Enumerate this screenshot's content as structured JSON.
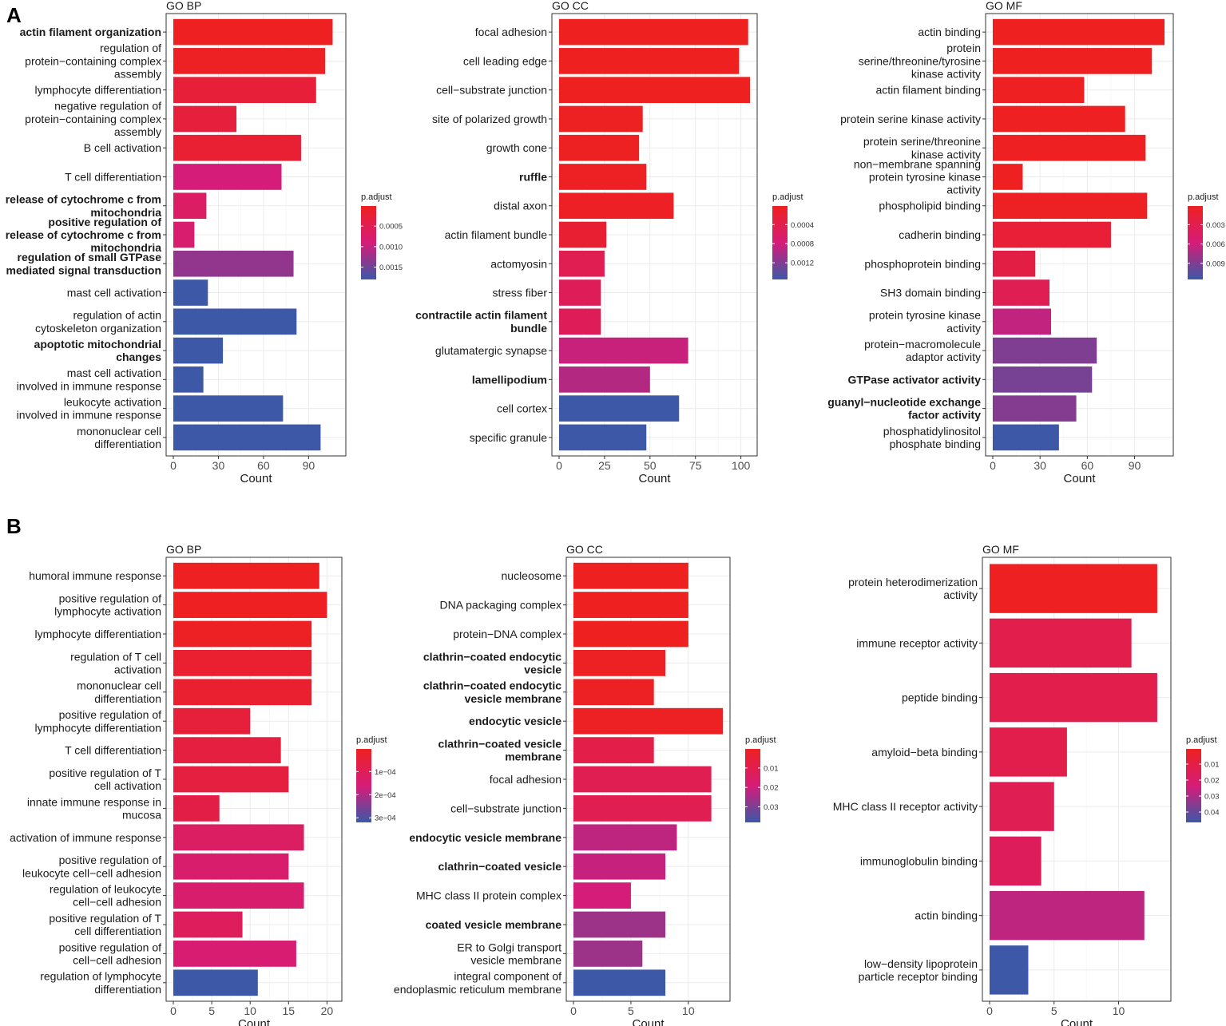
{
  "figure_labels": [
    "A",
    "B"
  ],
  "colors": {
    "low_p": "#ee2020",
    "mid_p": "#d51c78",
    "high_p": "#3c58a6"
  },
  "chart_data": [
    {
      "panel": "A",
      "type": "bar",
      "orientation": "horizontal",
      "title": "GO BP",
      "xlabel": "Count",
      "xlim": [
        0,
        110
      ],
      "xticks": [
        0,
        30,
        60,
        90
      ],
      "legend_title": "p.adjust",
      "legend_range": [
        1e-05,
        0.0018
      ],
      "legend_ticks": [
        {
          "value": 0.0005,
          "label": "0.0005"
        },
        {
          "value": 0.001,
          "label": "0.0010"
        },
        {
          "value": 0.0015,
          "label": "0.0015"
        }
      ],
      "bars": [
        {
          "label": [
            "actin filament organization"
          ],
          "bold": true,
          "value": 106,
          "p": 2e-05
        },
        {
          "label": [
            "regulation of",
            "protein−containing complex",
            "assembly"
          ],
          "bold": false,
          "value": 101,
          "p": 5e-05
        },
        {
          "label": [
            "lymphocyte differentiation"
          ],
          "bold": false,
          "value": 95,
          "p": 0.00025
        },
        {
          "label": [
            "negative regulation of",
            "protein−containing complex",
            "assembly"
          ],
          "bold": false,
          "value": 42,
          "p": 0.0003
        },
        {
          "label": [
            "B cell activation"
          ],
          "bold": false,
          "value": 85,
          "p": 0.0002
        },
        {
          "label": [
            "T cell differentiation"
          ],
          "bold": false,
          "value": 72,
          "p": 0.0009
        },
        {
          "label": [
            "release of cytochrome c from",
            "mitochondria"
          ],
          "bold": true,
          "value": 22,
          "p": 0.0007
        },
        {
          "label": [
            "positive regulation of",
            "release of cytochrome c from",
            "mitochondria"
          ],
          "bold": true,
          "value": 14,
          "p": 0.0008
        },
        {
          "label": [
            "regulation of small GTPase",
            "mediated signal transduction"
          ],
          "bold": true,
          "value": 80,
          "p": 0.0013
        },
        {
          "label": [
            "mast cell activation"
          ],
          "bold": false,
          "value": 23,
          "p": 0.0018
        },
        {
          "label": [
            "regulation of actin",
            "cytoskeleton organization"
          ],
          "bold": false,
          "value": 82,
          "p": 0.0018
        },
        {
          "label": [
            "apoptotic mitochondrial",
            "changes"
          ],
          "bold": true,
          "value": 33,
          "p": 0.0018
        },
        {
          "label": [
            "mast cell activation",
            "involved in immune response"
          ],
          "bold": false,
          "value": 20,
          "p": 0.0018
        },
        {
          "label": [
            "leukocyte activation",
            "involved in immune response"
          ],
          "bold": false,
          "value": 73,
          "p": 0.0018
        },
        {
          "label": [
            "mononuclear cell",
            "differentiation"
          ],
          "bold": false,
          "value": 98,
          "p": 0.0018
        }
      ]
    },
    {
      "panel": "A",
      "type": "bar",
      "orientation": "horizontal",
      "title": "GO CC",
      "xlabel": "Count",
      "xlim": [
        0,
        105
      ],
      "xticks": [
        0,
        25,
        50,
        75,
        100
      ],
      "legend_title": "p.adjust",
      "legend_range": [
        1e-05,
        0.00155
      ],
      "legend_ticks": [
        {
          "value": 0.0004,
          "label": "0.0004"
        },
        {
          "value": 0.0008,
          "label": "0.0008"
        },
        {
          "value": 0.0012,
          "label": "0.0012"
        }
      ],
      "bars": [
        {
          "label": [
            "focal adhesion"
          ],
          "bold": false,
          "value": 104,
          "p": 1e-05
        },
        {
          "label": [
            "cell leading edge"
          ],
          "bold": false,
          "value": 99,
          "p": 1e-05
        },
        {
          "label": [
            "cell−substrate junction"
          ],
          "bold": false,
          "value": 105,
          "p": 1e-05
        },
        {
          "label": [
            "site of polarized growth"
          ],
          "bold": false,
          "value": 46,
          "p": 3e-05
        },
        {
          "label": [
            "growth cone"
          ],
          "bold": false,
          "value": 44,
          "p": 3e-05
        },
        {
          "label": [
            "ruffle"
          ],
          "bold": true,
          "value": 48,
          "p": 4e-05
        },
        {
          "label": [
            "distal axon"
          ],
          "bold": false,
          "value": 63,
          "p": 5e-05
        },
        {
          "label": [
            "actin filament bundle"
          ],
          "bold": false,
          "value": 26,
          "p": 0.00018
        },
        {
          "label": [
            "actomyosin"
          ],
          "bold": false,
          "value": 25,
          "p": 0.00045
        },
        {
          "label": [
            "stress fiber"
          ],
          "bold": false,
          "value": 23,
          "p": 0.0005
        },
        {
          "label": [
            "contractile actin filament",
            "bundle"
          ],
          "bold": true,
          "value": 23,
          "p": 0.0005
        },
        {
          "label": [
            "glutamatergic synapse"
          ],
          "bold": false,
          "value": 71,
          "p": 0.00085
        },
        {
          "label": [
            "lamellipodium"
          ],
          "bold": true,
          "value": 50,
          "p": 0.00095
        },
        {
          "label": [
            "cell cortex"
          ],
          "bold": false,
          "value": 66,
          "p": 0.00155
        },
        {
          "label": [
            "specific granule"
          ],
          "bold": false,
          "value": 48,
          "p": 0.00155
        }
      ]
    },
    {
      "panel": "A",
      "type": "bar",
      "orientation": "horizontal",
      "title": "GO MF",
      "xlabel": "Count",
      "xlim": [
        0,
        110
      ],
      "xticks": [
        0,
        30,
        60,
        90
      ],
      "legend_title": "p.adjust",
      "legend_range": [
        0.0001,
        0.0115
      ],
      "legend_ticks": [
        {
          "value": 0.003,
          "label": "0.003"
        },
        {
          "value": 0.006,
          "label": "0.006"
        },
        {
          "value": 0.009,
          "label": "0.009"
        }
      ],
      "bars": [
        {
          "label": [
            "actin binding"
          ],
          "bold": false,
          "value": 109,
          "p": 0.0001
        },
        {
          "label": [
            "protein",
            "serine/threonine/tyrosine",
            "kinase activity"
          ],
          "bold": false,
          "value": 101,
          "p": 0.0001
        },
        {
          "label": [
            "actin filament binding"
          ],
          "bold": false,
          "value": 58,
          "p": 0.0002
        },
        {
          "label": [
            "protein serine kinase activity"
          ],
          "bold": false,
          "value": 84,
          "p": 0.0002
        },
        {
          "label": [
            "protein serine/threonine",
            "kinase activity"
          ],
          "bold": false,
          "value": 97,
          "p": 0.0002
        },
        {
          "label": [
            "non−membrane spanning",
            "protein tyrosine kinase",
            "activity"
          ],
          "bold": false,
          "value": 19,
          "p": 0.0002
        },
        {
          "label": [
            "phospholipid binding"
          ],
          "bold": false,
          "value": 98,
          "p": 0.0003
        },
        {
          "label": [
            "cadherin binding"
          ],
          "bold": false,
          "value": 75,
          "p": 0.0015
        },
        {
          "label": [
            "phosphoprotein binding"
          ],
          "bold": false,
          "value": 27,
          "p": 0.0025
        },
        {
          "label": [
            "SH3 domain binding"
          ],
          "bold": false,
          "value": 36,
          "p": 0.0035
        },
        {
          "label": [
            "protein tyrosine kinase",
            "activity"
          ],
          "bold": false,
          "value": 37,
          "p": 0.0065
        },
        {
          "label": [
            "protein−macromolecule",
            "adaptor activity"
          ],
          "bold": false,
          "value": 66,
          "p": 0.009
        },
        {
          "label": [
            "GTPase activator activity"
          ],
          "bold": true,
          "value": 63,
          "p": 0.0093
        },
        {
          "label": [
            "guanyl−nucleotide exchange",
            "factor activity"
          ],
          "bold": true,
          "value": 53,
          "p": 0.0088
        },
        {
          "label": [
            "phosphatidylinositol",
            "phosphate binding"
          ],
          "bold": false,
          "value": 42,
          "p": 0.0115
        }
      ]
    },
    {
      "panel": "B",
      "type": "bar",
      "orientation": "horizontal",
      "title": "GO BP",
      "xlabel": "Count",
      "xlim": [
        0,
        21
      ],
      "xticks": [
        0,
        5,
        10,
        15,
        20
      ],
      "legend_title": "p.adjust",
      "legend_range": [
        2e-06,
        0.00032
      ],
      "legend_ticks": [
        {
          "value": 0.0001,
          "label": "1e−04"
        },
        {
          "value": 0.0002,
          "label": "2e−04"
        },
        {
          "value": 0.0003,
          "label": "3e−04"
        }
      ],
      "bars": [
        {
          "label": [
            "humoral immune response"
          ],
          "bold": false,
          "value": 19,
          "p": 5e-06
        },
        {
          "label": [
            "positive regulation of",
            "lymphocyte activation"
          ],
          "bold": false,
          "value": 20,
          "p": 5e-06
        },
        {
          "label": [
            "lymphocyte differentiation"
          ],
          "bold": false,
          "value": 18,
          "p": 1e-05
        },
        {
          "label": [
            "regulation of T cell",
            "activation"
          ],
          "bold": false,
          "value": 18,
          "p": 3e-05
        },
        {
          "label": [
            "mononuclear cell",
            "differentiation"
          ],
          "bold": false,
          "value": 18,
          "p": 3e-05
        },
        {
          "label": [
            "positive regulation of",
            "lymphocyte differentiation"
          ],
          "bold": false,
          "value": 10,
          "p": 5e-05
        },
        {
          "label": [
            "T cell differentiation"
          ],
          "bold": false,
          "value": 14,
          "p": 6e-05
        },
        {
          "label": [
            "positive regulation of T",
            "cell activation"
          ],
          "bold": false,
          "value": 15,
          "p": 6e-05
        },
        {
          "label": [
            "innate immune response in",
            "mucosa"
          ],
          "bold": false,
          "value": 6,
          "p": 7e-05
        },
        {
          "label": [
            "activation of immune response"
          ],
          "bold": false,
          "value": 17,
          "p": 0.00012
        },
        {
          "label": [
            "positive regulation of",
            "leukocyte cell−cell adhesion"
          ],
          "bold": false,
          "value": 15,
          "p": 0.00014
        },
        {
          "label": [
            "regulation of leukocyte",
            "cell−cell adhesion"
          ],
          "bold": false,
          "value": 17,
          "p": 0.00014
        },
        {
          "label": [
            "positive regulation of T",
            "cell differentiation"
          ],
          "bold": false,
          "value": 9,
          "p": 0.00011
        },
        {
          "label": [
            "positive regulation of",
            "cell−cell adhesion"
          ],
          "bold": false,
          "value": 16,
          "p": 0.00015
        },
        {
          "label": [
            "regulation of lymphocyte",
            "differentiation"
          ],
          "bold": false,
          "value": 11,
          "p": 0.00032
        }
      ]
    },
    {
      "panel": "B",
      "type": "bar",
      "orientation": "horizontal",
      "title": "GO CC",
      "xlabel": "Count",
      "xlim": [
        0,
        13
      ],
      "xticks": [
        0,
        5,
        10
      ],
      "legend_title": "p.adjust",
      "legend_range": [
        0.0002,
        0.038
      ],
      "legend_ticks": [
        {
          "value": 0.01,
          "label": "0.01"
        },
        {
          "value": 0.02,
          "label": "0.02"
        },
        {
          "value": 0.03,
          "label": "0.03"
        }
      ],
      "bars": [
        {
          "label": [
            "nucleosome"
          ],
          "bold": false,
          "value": 10,
          "p": 0.0003
        },
        {
          "label": [
            "DNA packaging complex"
          ],
          "bold": false,
          "value": 10,
          "p": 0.0003
        },
        {
          "label": [
            "protein−DNA complex"
          ],
          "bold": false,
          "value": 10,
          "p": 0.0003
        },
        {
          "label": [
            "clathrin−coated endocytic",
            "vesicle"
          ],
          "bold": true,
          "value": 8,
          "p": 0.0008
        },
        {
          "label": [
            "clathrin−coated endocytic",
            "vesicle membrane"
          ],
          "bold": true,
          "value": 7,
          "p": 0.0008
        },
        {
          "label": [
            "endocytic vesicle"
          ],
          "bold": true,
          "value": 13,
          "p": 0.0008
        },
        {
          "label": [
            "clathrin−coated vesicle",
            "membrane"
          ],
          "bold": true,
          "value": 7,
          "p": 0.009
        },
        {
          "label": [
            "focal adhesion"
          ],
          "bold": false,
          "value": 12,
          "p": 0.011
        },
        {
          "label": [
            "cell−substrate junction"
          ],
          "bold": false,
          "value": 12,
          "p": 0.011
        },
        {
          "label": [
            "endocytic vesicle membrane"
          ],
          "bold": true,
          "value": 9,
          "p": 0.022
        },
        {
          "label": [
            "clathrin−coated vesicle"
          ],
          "bold": true,
          "value": 8,
          "p": 0.021
        },
        {
          "label": [
            "MHC class II protein complex"
          ],
          "bold": false,
          "value": 5,
          "p": 0.019
        },
        {
          "label": [
            "coated vesicle membrane"
          ],
          "bold": true,
          "value": 8,
          "p": 0.026
        },
        {
          "label": [
            "ER to Golgi transport",
            "vesicle membrane"
          ],
          "bold": false,
          "value": 6,
          "p": 0.026
        },
        {
          "label": [
            "integral component of",
            "endoplasmic reticulum membrane"
          ],
          "bold": false,
          "value": 8,
          "p": 0.038
        }
      ]
    },
    {
      "panel": "B",
      "type": "bar",
      "orientation": "horizontal",
      "title": "GO MF",
      "xlabel": "Count",
      "xlim": [
        0,
        13.5
      ],
      "xticks": [
        0,
        5,
        10
      ],
      "legend_title": "p.adjust",
      "legend_range": [
        0.0005,
        0.0465
      ],
      "legend_ticks": [
        {
          "value": 0.01,
          "label": "0.01"
        },
        {
          "value": 0.02,
          "label": "0.02"
        },
        {
          "value": 0.03,
          "label": "0.03"
        },
        {
          "value": 0.04,
          "label": "0.04"
        }
      ],
      "bars": [
        {
          "label": [
            "protein heterodimerization",
            "activity"
          ],
          "bold": false,
          "value": 13,
          "p": 0.0008
        },
        {
          "label": [
            "immune receptor activity"
          ],
          "bold": false,
          "value": 11,
          "p": 0.012
        },
        {
          "label": [
            "peptide binding"
          ],
          "bold": false,
          "value": 13,
          "p": 0.012
        },
        {
          "label": [
            "amyloid−beta binding"
          ],
          "bold": false,
          "value": 6,
          "p": 0.012
        },
        {
          "label": [
            "MHC class II receptor activity"
          ],
          "bold": false,
          "value": 5,
          "p": 0.014
        },
        {
          "label": [
            "immunoglobulin binding"
          ],
          "bold": false,
          "value": 4,
          "p": 0.016
        },
        {
          "label": [
            "actin binding"
          ],
          "bold": false,
          "value": 12,
          "p": 0.027
        },
        {
          "label": [
            "low−density lipoprotein",
            "particle receptor binding"
          ],
          "bold": false,
          "value": 3,
          "p": 0.0465
        }
      ]
    }
  ]
}
